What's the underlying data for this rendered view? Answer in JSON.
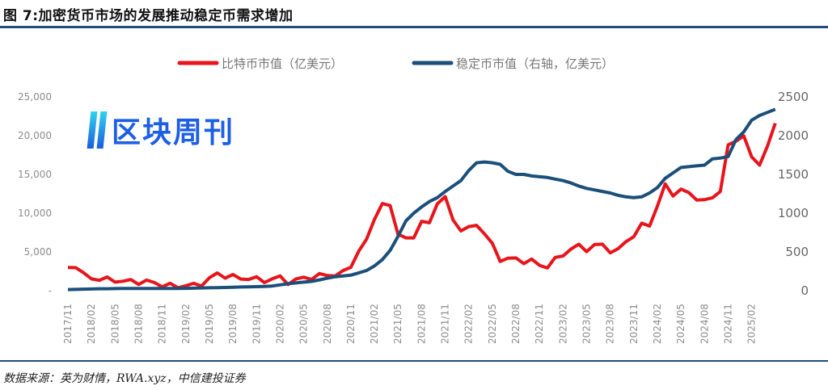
{
  "title": "图 7:加密货币市场的发展推动稳定币需求增加",
  "source": "数据来源：英为财情，RWA.xyz，中信建投证券",
  "watermark": "区块周刊",
  "chart_data": {
    "type": "line",
    "title": "",
    "legend_position": "top",
    "left_axis": {
      "ylim": [
        0,
        25000
      ],
      "ticks": [
        "-",
        "5,000",
        "10,000",
        "15,000",
        "20,000",
        "25,000"
      ]
    },
    "right_axis": {
      "ylim": [
        0,
        2500
      ],
      "ticks": [
        "0",
        "500",
        "1000",
        "1500",
        "2000",
        "2500"
      ]
    },
    "x_ticks": [
      "2017/11",
      "2018/02",
      "2018/05",
      "2018/08",
      "2018/11",
      "2019/02",
      "2019/05",
      "2019/08",
      "2019/11",
      "2020/02",
      "2020/05",
      "2020/08",
      "2020/11",
      "2021/02",
      "2021/05",
      "2021/08",
      "2021/11",
      "2022/02",
      "2022/05",
      "2022/08",
      "2022/11",
      "2023/02",
      "2023/05",
      "2023/08",
      "2023/11",
      "2024/02",
      "2024/05",
      "2024/08",
      "2024/11",
      "2025/02"
    ],
    "series": [
      {
        "name": "比特币市值（亿美元）",
        "axis": "left",
        "color": "#e8141b",
        "values": [
          3000,
          3200,
          2000,
          1700,
          1400,
          1500,
          1400,
          1100,
          1300,
          1100,
          1100,
          1100,
          700,
          650,
          600,
          650,
          700,
          900,
          1500,
          2200,
          1900,
          1800,
          1600,
          1600,
          1500,
          1300,
          1500,
          1700,
          1100,
          1300,
          1700,
          1700,
          1900,
          2100,
          2000,
          2300,
          3300,
          5000,
          6500,
          9500,
          11000,
          11000,
          7500,
          6500,
          7000,
          9000,
          8500,
          11500,
          12000,
          9000,
          8000,
          8000,
          8500,
          7500,
          5800,
          4000,
          4200,
          4000,
          3800,
          3900,
          3200,
          3200,
          4000,
          4600,
          5500,
          5700,
          5300,
          5900,
          5800,
          5200,
          5200,
          6300,
          7200,
          8400,
          8500,
          11000,
          13500,
          12500,
          13000,
          12500,
          12000,
          11500,
          12000,
          13000,
          18500,
          19500,
          20000,
          17000,
          16500,
          18500,
          21500
        ]
      },
      {
        "name": "稳定币市值（右轴，亿美元）",
        "axis": "right",
        "color": "#1b4f7a",
        "values": [
          15,
          17,
          20,
          22,
          25,
          25,
          27,
          28,
          28,
          28,
          28,
          28,
          28,
          28,
          28,
          30,
          32,
          35,
          38,
          40,
          42,
          45,
          48,
          50,
          52,
          55,
          60,
          75,
          90,
          100,
          110,
          120,
          140,
          160,
          180,
          190,
          200,
          230,
          260,
          320,
          400,
          520,
          700,
          900,
          1000,
          1080,
          1150,
          1200,
          1280,
          1350,
          1420,
          1550,
          1650,
          1660,
          1650,
          1630,
          1540,
          1500,
          1500,
          1480,
          1470,
          1460,
          1440,
          1420,
          1390,
          1350,
          1320,
          1300,
          1280,
          1260,
          1230,
          1210,
          1200,
          1210,
          1260,
          1330,
          1450,
          1520,
          1590,
          1600,
          1610,
          1620,
          1700,
          1710,
          1730,
          1950,
          2050,
          2200,
          2260,
          2300,
          2340
        ]
      }
    ]
  }
}
